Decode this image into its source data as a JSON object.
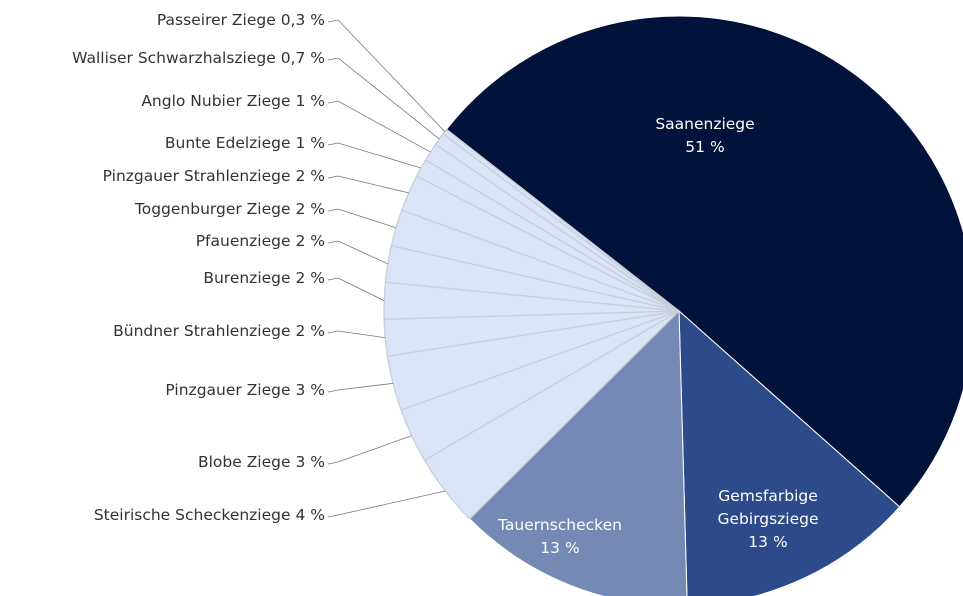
{
  "chart_data": {
    "type": "pie",
    "categories": [
      "Saanenziege",
      "Gemsfarbige Gebirgsziege",
      "Tauernschecken",
      "Steirische Scheckenziege",
      "Blobe Ziege",
      "Pinzgauer Ziege",
      "Bündner Strahlenziege",
      "Burenziege",
      "Pfauenziege",
      "Toggenburger Ziege",
      "Pinzgauer Strahlenziege",
      "Bunte Edelziege",
      "Anglo Nubier Ziege",
      "Walliser Schwarzhalsziege",
      "Passeirer Ziege"
    ],
    "values": [
      51,
      13,
      13,
      4,
      3,
      3,
      2,
      2,
      2,
      2,
      2,
      1,
      1,
      0.7,
      0.3
    ],
    "value_labels": [
      "51 %",
      "13 %",
      "13 %",
      "4 %",
      "3 %",
      "3 %",
      "2 %",
      "2 %",
      "2 %",
      "2 %",
      "2 %",
      "1 %",
      "1 %",
      "0,7 %",
      "0,3 %"
    ],
    "colors": [
      "#01133a",
      "#2d4a8a",
      "#7489b4",
      "#d9e5f6",
      "#d9e5f6",
      "#d9e5f6",
      "#d9e5f6",
      "#d9e5f6",
      "#d9e5f6",
      "#d9e5f6",
      "#d9e5f6",
      "#d9e5f6",
      "#d9e5f6",
      "#d9e5f6",
      "#d9e5f6"
    ]
  }
}
